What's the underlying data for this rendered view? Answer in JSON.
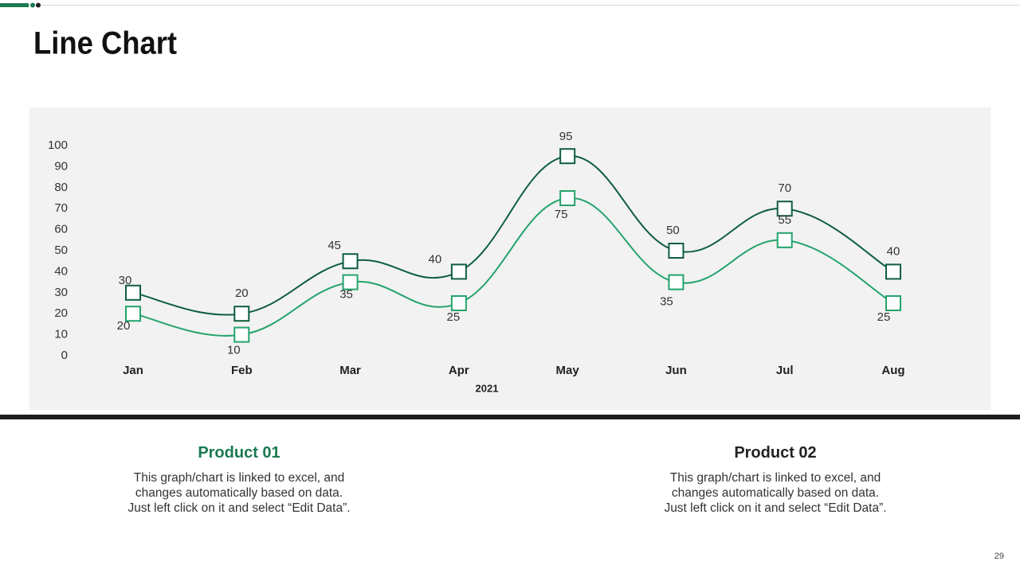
{
  "header": {
    "title": "Line Chart"
  },
  "chart_data": {
    "type": "line",
    "categories": [
      "Jan",
      "Feb",
      "Mar",
      "Apr",
      "May",
      "Jun",
      "Jul",
      "Aug"
    ],
    "x_label": "2021",
    "ylim": [
      0,
      100
    ],
    "yticks": [
      0,
      10,
      20,
      30,
      40,
      50,
      60,
      70,
      80,
      90,
      100
    ],
    "grid": false,
    "series": [
      {
        "color": "#0f5e3f",
        "values": [
          30,
          20,
          45,
          40,
          95,
          50,
          70,
          40
        ]
      },
      {
        "color": "#23a36c",
        "values": [
          20,
          10,
          35,
          25,
          75,
          35,
          55,
          25
        ]
      }
    ]
  },
  "panels": [
    {
      "title": "Product 01",
      "color": "#1a7a50",
      "lines": [
        "This graph/chart is linked to excel, and",
        "changes automatically based on data.",
        "Just left click on it and select “Edit Data”."
      ]
    },
    {
      "title": "Product 02",
      "color": "#222222",
      "lines": [
        "This graph/chart is linked to excel, and",
        "changes automatically based on data.",
        "Just left click on it and select “Edit Data”."
      ]
    }
  ],
  "page_number": "29"
}
